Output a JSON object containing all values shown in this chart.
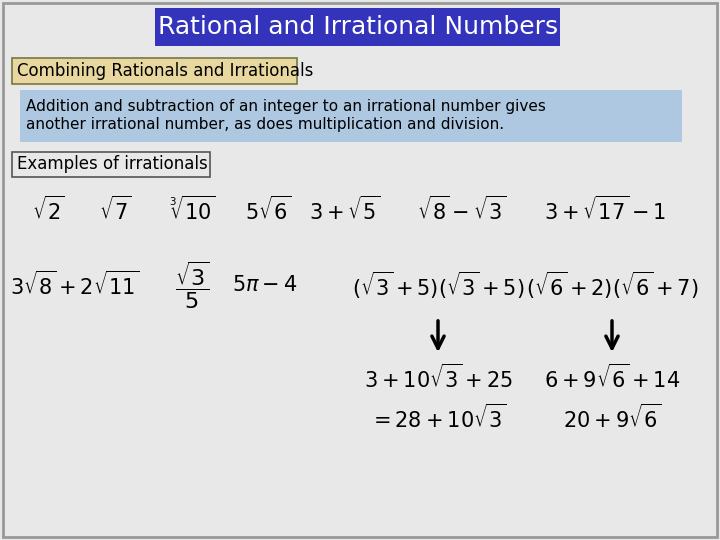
{
  "title": "Rational and Irrational Numbers",
  "title_bg": "#3333BB",
  "title_fg": "#FFFFFF",
  "subtitle": "Combining Rationals and Irrationals",
  "subtitle_bg": "#E8D8A0",
  "subtitle_border": "#888855",
  "body_text_line1": "Addition and subtraction of an integer to an irrational number gives",
  "body_text_line2": "another irrational number, as does multiplication and division.",
  "body_bg": "#ADC8E0",
  "examples_label": "Examples of irrationals",
  "background_color": "#E8E8E8",
  "border_color": "#999999",
  "math_color": "#000000",
  "font_size_title": 18,
  "font_size_subtitle": 12,
  "font_size_body": 11,
  "font_size_math": 15
}
